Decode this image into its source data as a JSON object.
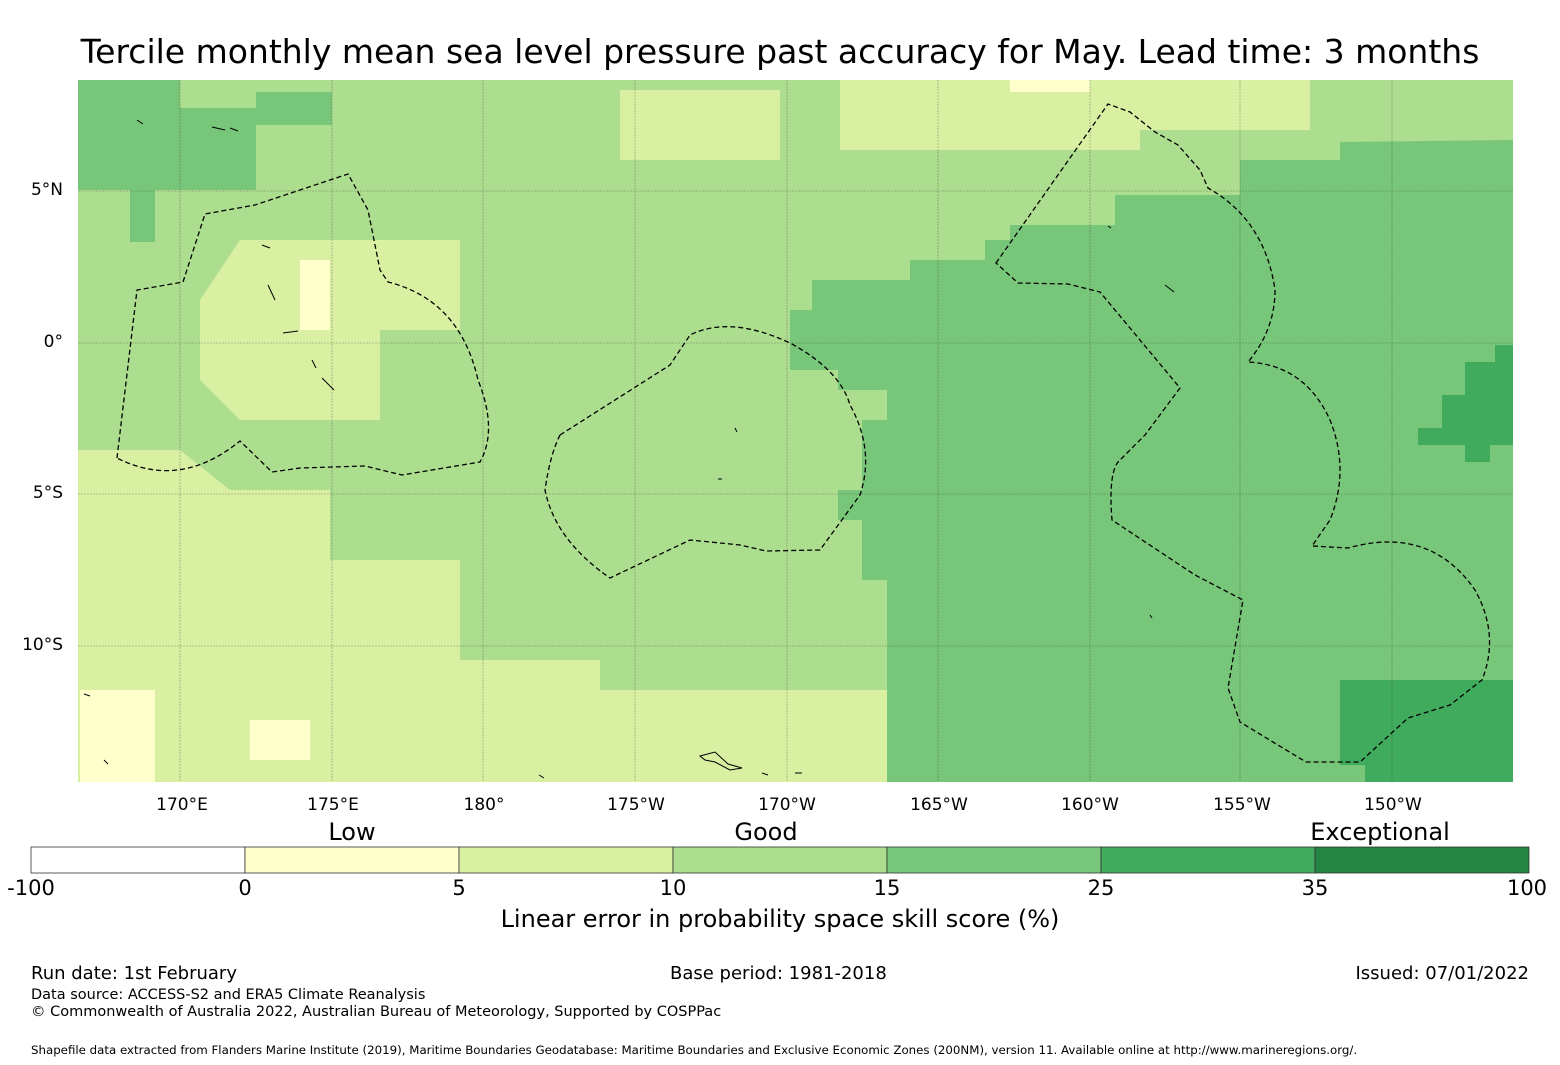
{
  "title": "Tercile monthly mean sea level pressure past accuracy for May. Lead time: 3 months",
  "map": {
    "lat_ticks": [
      "5°N",
      "0°",
      "5°S",
      "10°S"
    ],
    "lon_ticks": [
      "170°E",
      "175°E",
      "180°",
      "175°W",
      "170°W",
      "165°W",
      "160°W",
      "155°W",
      "150°W"
    ],
    "region_colors": {
      "0-5": "#ffffcc",
      "5-10": "#d9f0a3",
      "10-15": "#addd8e",
      "15-25": "#78c679",
      "25-35": "#41ab5d"
    }
  },
  "colorbar": {
    "categories": [
      "Low",
      "Good",
      "Exceptional"
    ],
    "ticks": [
      "-100",
      "0",
      "5",
      "10",
      "15",
      "25",
      "35",
      "100"
    ],
    "colors": [
      "#ffffff",
      "#ffffcc",
      "#d9f0a3",
      "#addd8e",
      "#78c679",
      "#41ab5d",
      "#238443"
    ],
    "label": "Linear error in probability space skill score (%)"
  },
  "footer": {
    "run_date": "Run date: 1st February",
    "base_period": "Base period: 1981-2018",
    "issued": "Issued: 07/01/2022",
    "data_source": "Data source: ACCESS-S2 and ERA5 Climate Reanalysis",
    "copyright": "© Commonwealth of Australia 2022, Australian Bureau of Meteorology, Supported by COSPPac",
    "shapefile": "Shapefile data extracted from Flanders Marine Institute (2019), Maritime Boundaries Geodatabase: Maritime Boundaries and Exclusive Economic Zones (200NM), version 11. Available online at http://www.marineregions.org/."
  }
}
